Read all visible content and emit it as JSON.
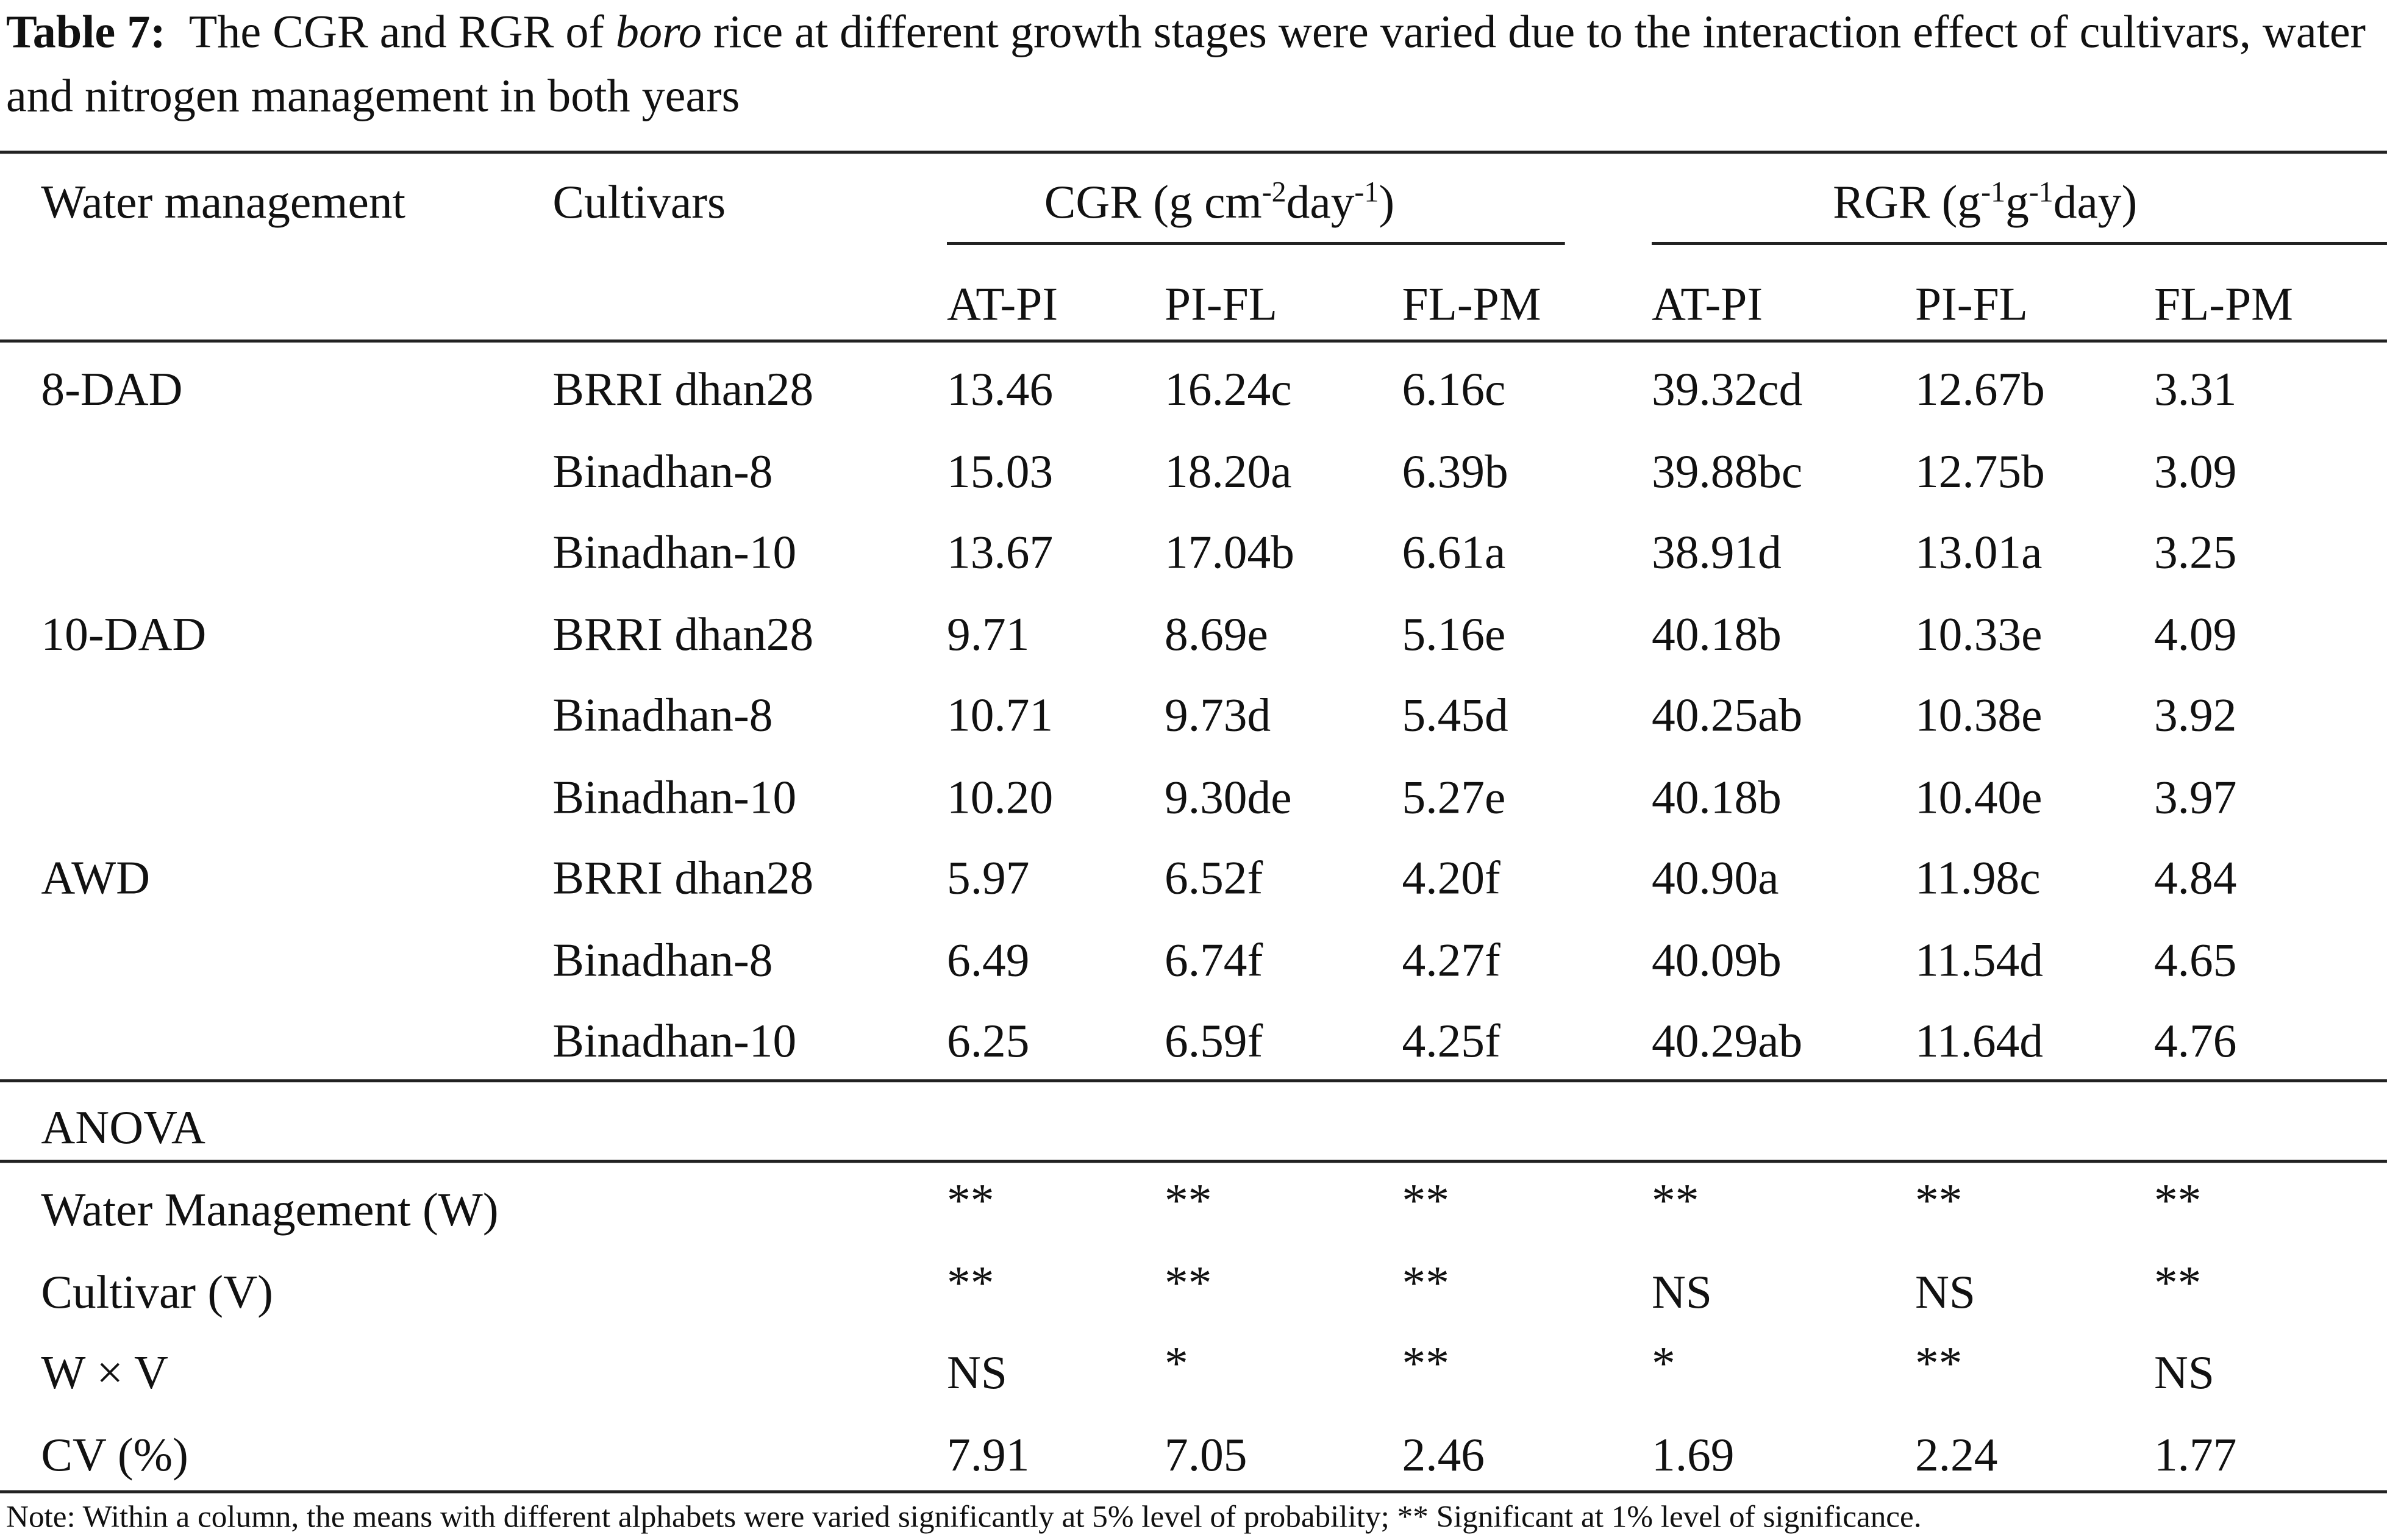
{
  "caption": {
    "label": "Table 7:",
    "before": "The CGR and RGR of ",
    "italic": "boro",
    "after": " rice at different growth stages were varied due to the interaction effect of cultivars, water and nitrogen management in both years"
  },
  "header": {
    "water": "Water management",
    "cultivars": "Cultivars",
    "groups": [
      {
        "parts": [
          "CGR (g cm",
          "-2",
          "day",
          "-1",
          ")"
        ]
      },
      {
        "parts": [
          "RGR (g",
          "-1",
          "g",
          "-1",
          "day)"
        ]
      }
    ],
    "subheaders": [
      "AT-PI",
      "PI-FL",
      "FL-PM",
      "AT-PI",
      "PI-FL",
      "FL-PM"
    ]
  },
  "groups": [
    {
      "water": "8-DAD",
      "rows": [
        [
          "BRRI dhan28",
          "13.46",
          "16.24c",
          "6.16c",
          "39.32cd",
          "12.67b",
          "3.31"
        ],
        [
          "Binadhan-8",
          "15.03",
          "18.20a",
          "6.39b",
          "39.88bc",
          "12.75b",
          "3.09"
        ],
        [
          "Binadhan-10",
          "13.67",
          "17.04b",
          "6.61a",
          "38.91d",
          "13.01a",
          "3.25"
        ]
      ]
    },
    {
      "water": "10-DAD",
      "rows": [
        [
          "BRRI dhan28",
          "9.71",
          "8.69e",
          "5.16e",
          "40.18b",
          "10.33e",
          "4.09"
        ],
        [
          "Binadhan-8",
          "10.71",
          "9.73d",
          "5.45d",
          "40.25ab",
          "10.38e",
          "3.92"
        ],
        [
          "Binadhan-10",
          "10.20",
          "9.30de",
          "5.27e",
          "40.18b",
          "10.40e",
          "3.97"
        ]
      ]
    },
    {
      "water": "AWD",
      "rows": [
        [
          "BRRI dhan28",
          "5.97",
          "6.52f",
          "4.20f",
          "40.90a",
          "11.98c",
          "4.84"
        ],
        [
          "Binadhan-8",
          "6.49",
          "6.74f",
          "4.27f",
          "40.09b",
          "11.54d",
          "4.65"
        ],
        [
          "Binadhan-10",
          "6.25",
          "6.59f",
          "4.25f",
          "40.29ab",
          "11.64d",
          "4.76"
        ]
      ]
    }
  ],
  "anova": {
    "title": "ANOVA",
    "rows": [
      [
        "Water Management (W)",
        "**",
        "**",
        "**",
        "**",
        "**",
        "**"
      ],
      [
        "Cultivar (V)",
        "**",
        "**",
        "**",
        "NS",
        "NS",
        "**"
      ],
      [
        "W × V",
        "NS",
        "*",
        "**",
        "*",
        "**",
        "NS"
      ],
      [
        "CV (%)",
        "7.91",
        "7.05",
        "2.46",
        "1.69",
        "2.24",
        "1.77"
      ]
    ]
  },
  "note": "Note: Within a column, the means with different alphabets were varied significantly at 5% level of probability; ** Significant at 1% level of significance."
}
